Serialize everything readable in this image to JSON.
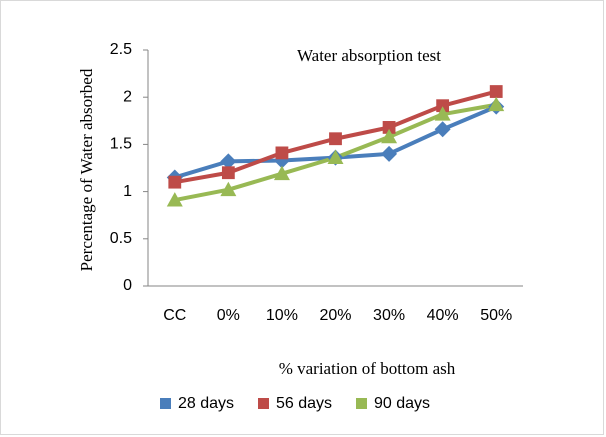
{
  "chart_data": {
    "type": "line",
    "title": "Water absorption test",
    "xlabel": "% variation of bottom ash",
    "ylabel": "Percentage of Water absorbed",
    "categories": [
      "CC",
      "0%",
      "10%",
      "20%",
      "30%",
      "40%",
      "50%"
    ],
    "series": [
      {
        "name": "28 days",
        "color": "#4a7ebb",
        "marker": "diamond",
        "values": [
          1.15,
          1.32,
          1.33,
          1.36,
          1.4,
          1.66,
          1.9
        ]
      },
      {
        "name": "56 days",
        "color": "#be4b48",
        "marker": "square",
        "values": [
          1.1,
          1.2,
          1.41,
          1.56,
          1.68,
          1.91,
          2.06
        ]
      },
      {
        "name": "90 days",
        "color": "#98b954",
        "marker": "triangle",
        "values": [
          0.91,
          1.02,
          1.19,
          1.36,
          1.58,
          1.82,
          1.92
        ]
      }
    ],
    "ylim": [
      0,
      2.5
    ],
    "yticks": [
      0,
      0.5,
      1,
      1.5,
      2,
      2.5
    ],
    "grid": false,
    "legend": "bottom"
  }
}
